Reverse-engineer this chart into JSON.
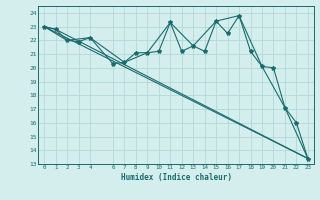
{
  "title": "",
  "xlabel": "Humidex (Indice chaleur)",
  "ylabel": "",
  "bg_color": "#d4eeee",
  "grid_color": "#b0d8d8",
  "line_color": "#1a6b6b",
  "xlim": [
    -0.5,
    23.5
  ],
  "ylim": [
    13,
    24.5
  ],
  "yticks": [
    13,
    14,
    15,
    16,
    17,
    18,
    19,
    20,
    21,
    22,
    23,
    24
  ],
  "xticks": [
    0,
    1,
    2,
    3,
    4,
    6,
    7,
    8,
    9,
    10,
    11,
    12,
    13,
    14,
    15,
    16,
    17,
    18,
    19,
    20,
    21,
    22,
    23
  ],
  "series": [
    {
      "x": [
        0,
        1,
        2,
        3,
        4,
        6,
        7,
        8,
        9,
        10,
        11,
        12,
        13,
        14,
        15,
        16,
        17,
        18,
        19,
        20,
        21,
        22,
        23
      ],
      "y": [
        23,
        22.8,
        22.0,
        21.9,
        22.2,
        20.3,
        20.4,
        21.1,
        21.1,
        21.2,
        23.3,
        21.2,
        21.6,
        21.2,
        23.4,
        22.5,
        23.8,
        21.2,
        20.1,
        20.0,
        17.1,
        16.0,
        13.4
      ],
      "marker": true
    },
    {
      "x": [
        0,
        23
      ],
      "y": [
        23,
        13.4
      ],
      "marker": false
    },
    {
      "x": [
        0,
        2,
        4,
        7,
        9,
        11,
        13,
        15,
        17,
        19,
        21,
        23
      ],
      "y": [
        23,
        22.0,
        22.2,
        20.4,
        21.1,
        23.3,
        21.6,
        23.4,
        23.8,
        20.1,
        17.1,
        13.4
      ],
      "marker": false
    },
    {
      "x": [
        0,
        1,
        23
      ],
      "y": [
        23,
        22.8,
        13.4
      ],
      "marker": false
    }
  ]
}
